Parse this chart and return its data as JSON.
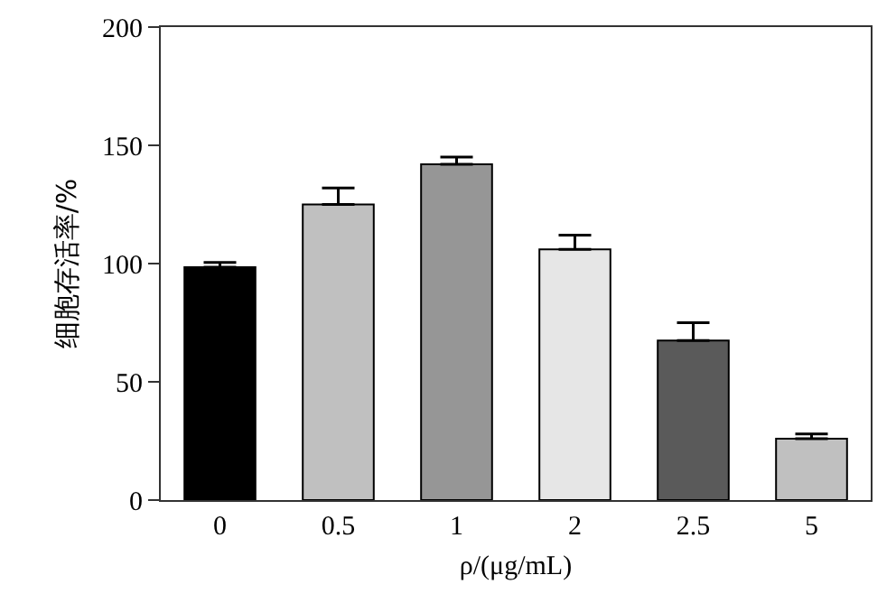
{
  "chart_data": {
    "type": "bar",
    "xlabel": "ρ/(μg/mL)",
    "ylabel": "细胞存活率/%",
    "categories": [
      "0",
      "0.5",
      "1",
      "2",
      "2.5",
      "5"
    ],
    "values": [
      98.5,
      125,
      142,
      106,
      67.5,
      26
    ],
    "colors": [
      "#000000",
      "#c0c0c0",
      "#969696",
      "#e6e6e6",
      "#5a5a5a",
      "#c0c0c0"
    ],
    "errors": [
      [
        98.5,
        100.5
      ],
      [
        125,
        132
      ],
      [
        142,
        145
      ],
      [
        106,
        112
      ],
      [
        67.5,
        75
      ],
      [
        26,
        28
      ]
    ],
    "ylim": [
      0,
      200
    ],
    "yticks": [
      0,
      50,
      100,
      150,
      200
    ],
    "grid": false
  }
}
